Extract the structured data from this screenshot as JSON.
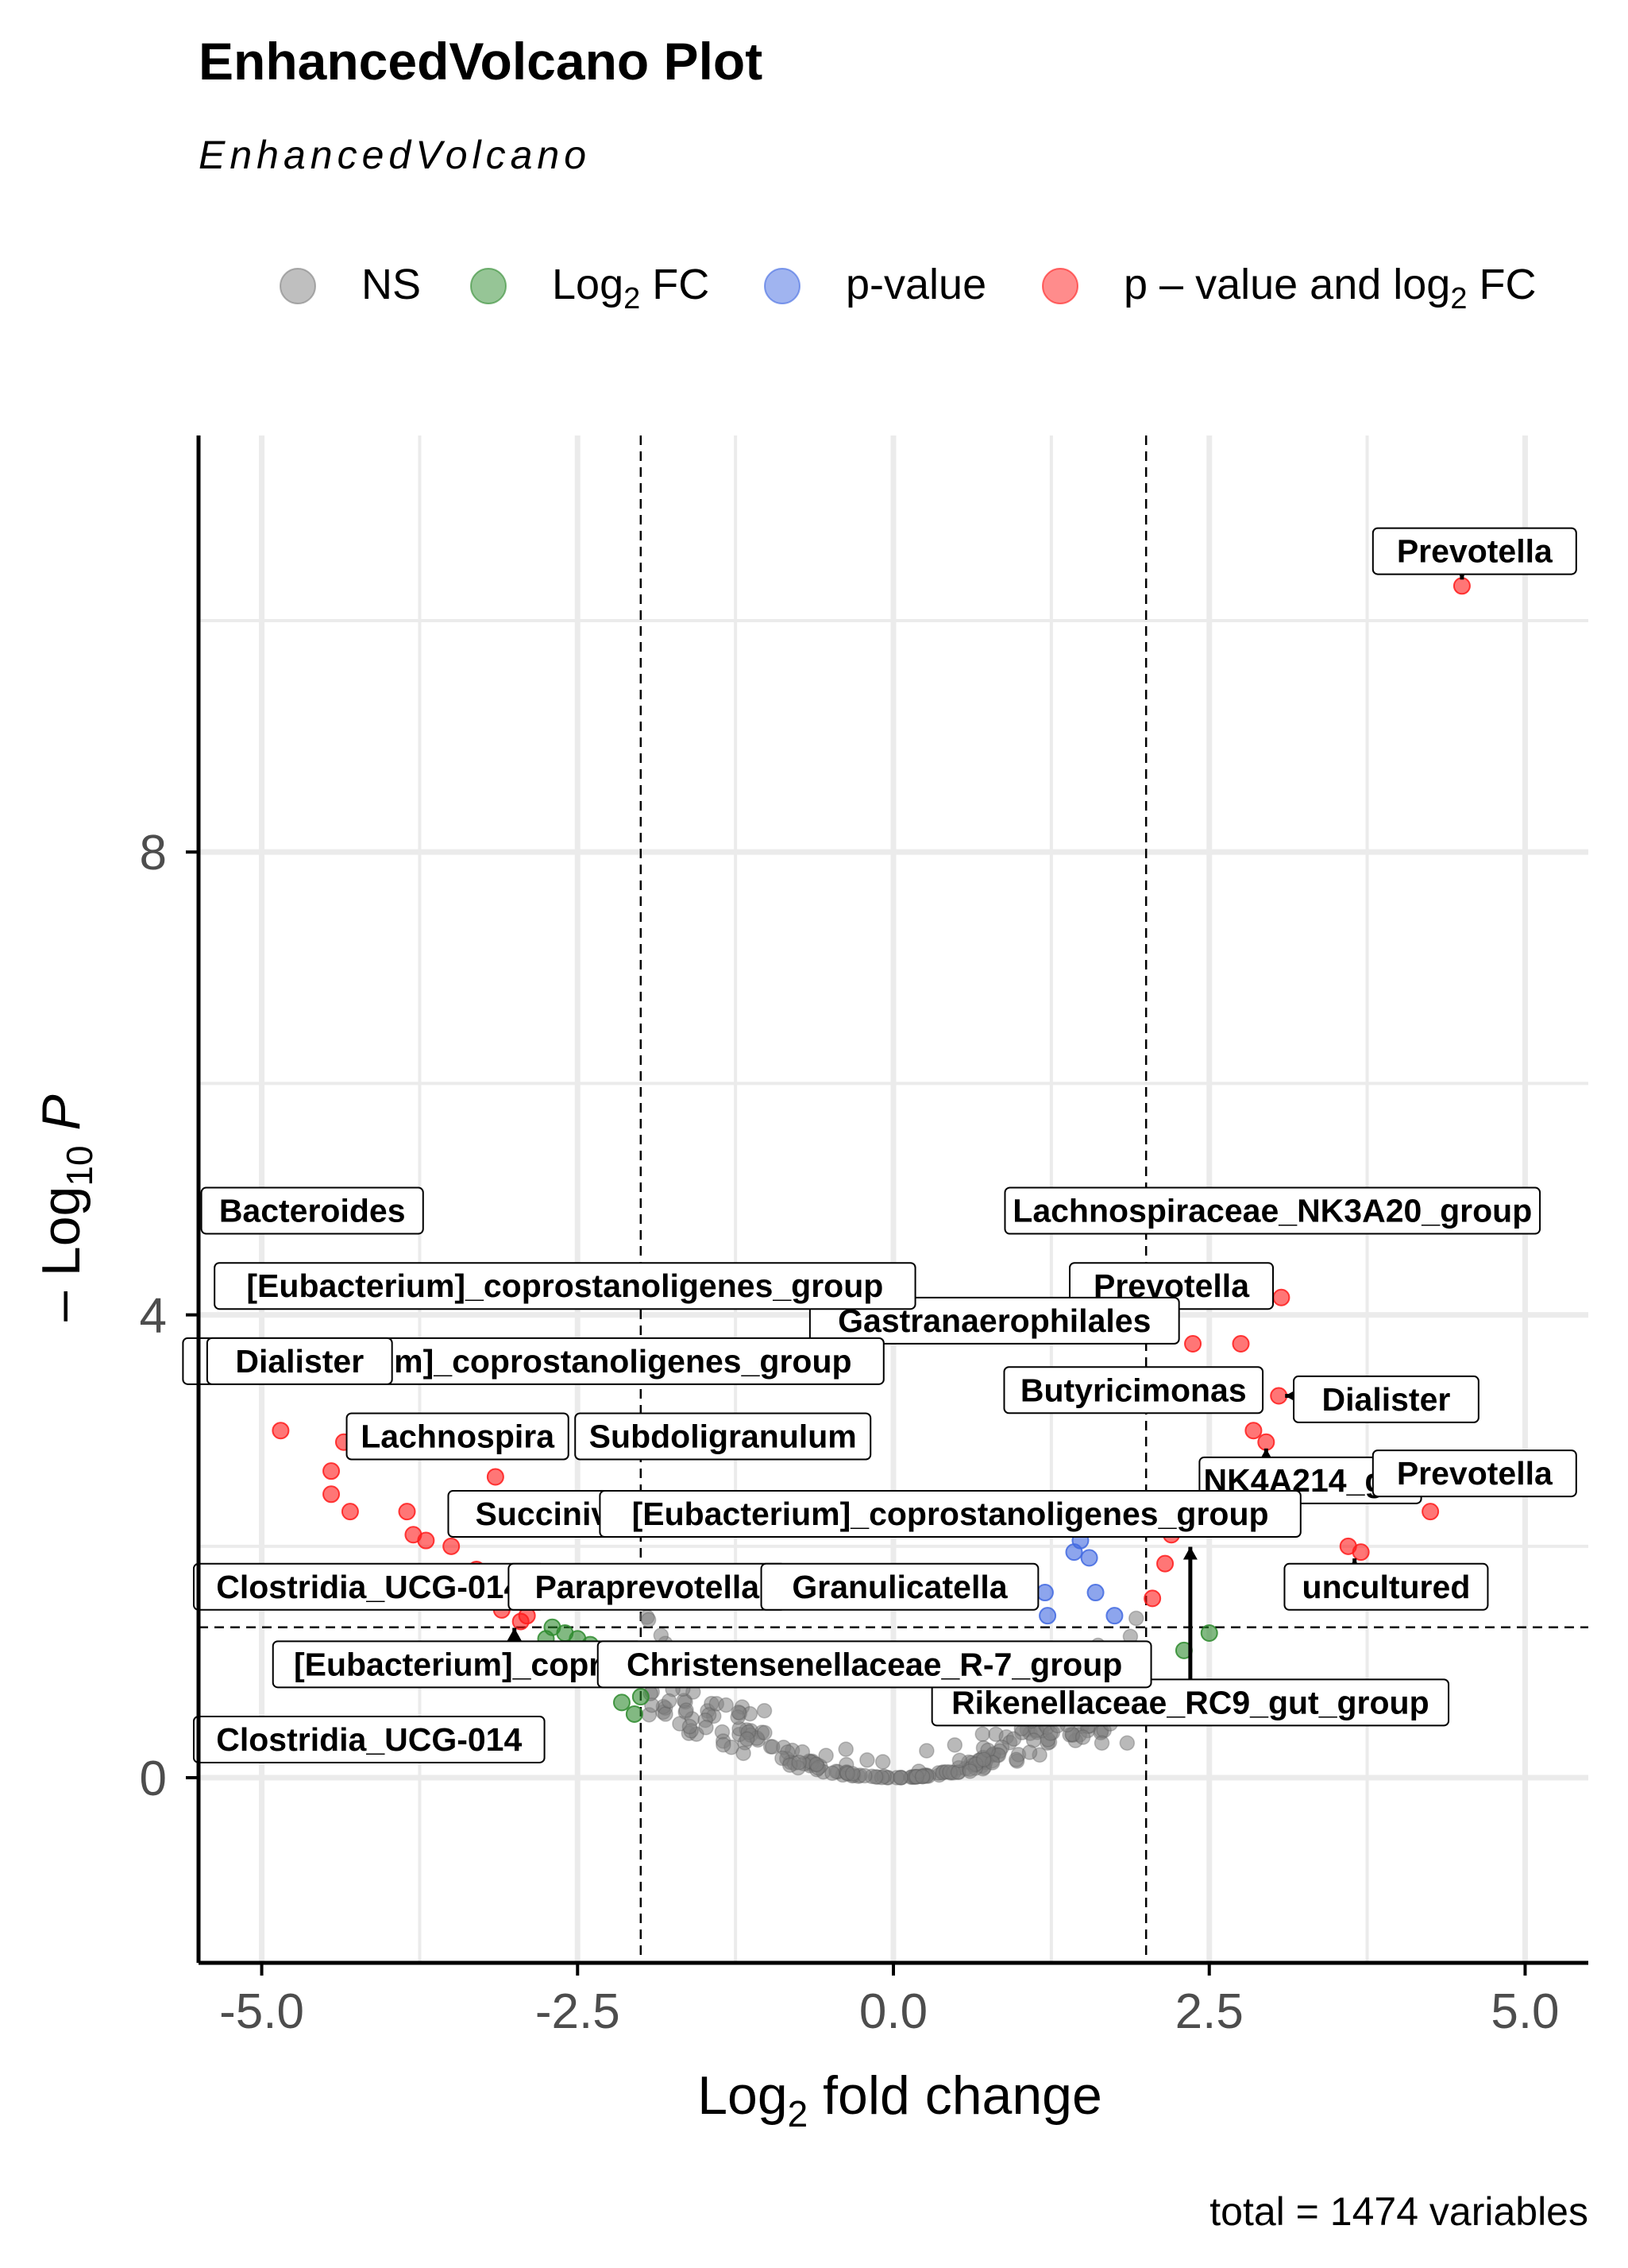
{
  "chart_data": {
    "type": "scatter",
    "title": "EnhancedVolcano Plot",
    "subtitle": "EnhancedVolcano",
    "caption": "total = 1474 variables",
    "xlabel": {
      "main": "Log",
      "sub": "2",
      "rest": " fold change"
    },
    "ylabel": {
      "prefix": "– Log",
      "sub": "10",
      "italic": "P"
    },
    "xlim": [
      -5.5,
      5.5
    ],
    "ylim": [
      -1.6,
      11.6
    ],
    "xticks": [
      -5,
      -2.5,
      0,
      2.5,
      5
    ],
    "xtick_labels": [
      "-5.0",
      "-2.5",
      "0.0",
      "2.5",
      "5.0"
    ],
    "yticks": [
      0,
      4,
      8
    ],
    "ytick_labels": [
      "0",
      "4",
      "8"
    ],
    "grid": true,
    "fc_cutoff": 2,
    "p_cutoff_neglog10": 1.3,
    "legend": {
      "position": "top",
      "items": [
        {
          "key": "ns",
          "text": "NS",
          "color": "#808080"
        },
        {
          "key": "fc",
          "text": "Log",
          "sub": "2",
          "rest": " FC",
          "color": "#2e8b2e"
        },
        {
          "key": "p",
          "text": "p-value",
          "color": "#4169e1"
        },
        {
          "key": "pfc",
          "text": "p – value and log",
          "sub": "2",
          "rest": " FC",
          "color": "#ff1a1a"
        }
      ]
    },
    "colors": {
      "NS": "#808080",
      "FC": "#2e8b2e",
      "P": "#4169e1",
      "P_FC": "#ff1a1a"
    },
    "series": [
      {
        "name": "p – value and log2 FC",
        "key": "pfc",
        "points": [
          [
            4.5,
            10.3
          ],
          [
            3.07,
            4.15
          ],
          [
            2.75,
            3.75
          ],
          [
            2.37,
            3.75
          ],
          [
            3.05,
            3.3
          ],
          [
            2.85,
            3.0
          ],
          [
            2.95,
            2.9
          ],
          [
            4.25,
            2.3
          ],
          [
            3.6,
            2.0
          ],
          [
            3.7,
            1.95
          ],
          [
            2.2,
            2.1
          ],
          [
            2.15,
            1.85
          ],
          [
            2.05,
            1.55
          ],
          [
            -4.85,
            3.0
          ],
          [
            -4.45,
            2.65
          ],
          [
            -4.45,
            2.45
          ],
          [
            -4.3,
            2.3
          ],
          [
            -4.35,
            2.9
          ],
          [
            -3.85,
            2.3
          ],
          [
            -3.8,
            2.1
          ],
          [
            -3.7,
            2.05
          ],
          [
            -3.5,
            2.0
          ],
          [
            -3.45,
            2.3
          ],
          [
            -3.3,
            1.8
          ],
          [
            -3.2,
            1.6
          ],
          [
            -3.1,
            1.45
          ],
          [
            -2.95,
            1.35
          ],
          [
            -2.9,
            1.4
          ],
          [
            -3.15,
            2.6
          ],
          [
            -2.0,
            2.9
          ],
          [
            -1.75,
            1.65
          ]
        ]
      },
      {
        "name": "p-value",
        "key": "p",
        "points": [
          [
            1.2,
            1.6
          ],
          [
            1.22,
            1.4
          ],
          [
            1.43,
            1.95
          ],
          [
            1.48,
            2.05
          ],
          [
            1.55,
            1.9
          ],
          [
            1.75,
            1.4
          ],
          [
            1.6,
            1.6
          ]
        ]
      },
      {
        "name": "Log2 FC",
        "key": "fc",
        "points": [
          [
            -2.6,
            1.25
          ],
          [
            -2.5,
            1.2
          ],
          [
            -2.4,
            1.15
          ],
          [
            -2.3,
            1.05
          ],
          [
            -2.2,
            0.95
          ],
          [
            -2.1,
            0.85
          ],
          [
            -2.0,
            0.7
          ],
          [
            -2.05,
            0.55
          ],
          [
            -2.15,
            0.65
          ],
          [
            -2.45,
            1.0
          ],
          [
            -2.7,
            1.3
          ],
          [
            -2.75,
            1.2
          ],
          [
            -2.55,
            0.95
          ],
          [
            2.5,
            1.25
          ],
          [
            2.3,
            1.1
          ],
          [
            2.05,
            0.7
          ]
        ]
      }
    ],
    "labels": [
      {
        "text": "Prevotella",
        "x": 4.5,
        "y": 10.3,
        "lx": 4.6,
        "ly": 10.6
      },
      {
        "text": "Lachnospiraceae_NK3A20_group",
        "x": 2.95,
        "y": 4.65,
        "lx": 3.0,
        "ly": 4.9
      },
      {
        "text": "Prevotella",
        "x": 2.55,
        "y": 4.05,
        "lx": 2.2,
        "ly": 4.25
      },
      {
        "text": "Gastranaerophilales",
        "x": 1.75,
        "y": 4.05,
        "lx": 0.8,
        "ly": 3.95
      },
      {
        "text": "Butyricimonas",
        "x": 2.8,
        "y": 3.15,
        "lx": 1.9,
        "ly": 3.35
      },
      {
        "text": "Dialister",
        "x": 3.05,
        "y": 3.3,
        "lx": 3.9,
        "ly": 3.27
      },
      {
        "text": "NK4A214_gro",
        "x": 2.95,
        "y": 2.9,
        "lx": 3.3,
        "ly": 2.57
      },
      {
        "text": "Prevotella",
        "x": 4.3,
        "y": 2.35,
        "lx": 4.6,
        "ly": 2.63
      },
      {
        "text": "uncultured",
        "x": 3.65,
        "y": 1.95,
        "lx": 3.9,
        "ly": 1.65
      },
      {
        "text": "Rikenellaceae_RC9_gut_group",
        "x": 2.35,
        "y": 2.05,
        "lx": 2.35,
        "ly": 0.65
      },
      {
        "text": "Bacteroides",
        "x": -4.45,
        "y": 4.65,
        "lx": -4.6,
        "ly": 4.9
      },
      {
        "text": "[Eubacterium]_coprostanoligenes_group",
        "x": -3.35,
        "y": 4.0,
        "lx": -2.6,
        "ly": 4.25
      },
      {
        "text": "[Eubacterium]_coprostanoligenes_group",
        "x": -3.65,
        "y": 3.45,
        "lx": -2.85,
        "ly": 3.6
      },
      {
        "text": "Dialister",
        "x": -4.8,
        "y": 3.45,
        "lx": -4.7,
        "ly": 3.6
      },
      {
        "text": "Lachnospira",
        "x": -3.15,
        "y": 2.7,
        "lx": -3.45,
        "ly": 2.95
      },
      {
        "text": "Subdoligranulum",
        "x": -2.0,
        "y": 2.95,
        "lx": -1.35,
        "ly": 2.95
      },
      {
        "text": "Succinivibrio",
        "x": -3.2,
        "y": 2.3,
        "lx": -2.5,
        "ly": 2.28
      },
      {
        "text": "[Eubacterium]_coprostanoligenes_group",
        "x": 2.2,
        "y": 2.15,
        "lx": 0.45,
        "ly": 2.28
      },
      {
        "text": "Clostridia_UCG-014",
        "x": -3.9,
        "y": 1.9,
        "lx": -4.15,
        "ly": 1.65
      },
      {
        "text": "Paraprevotella",
        "x": -2.95,
        "y": 1.5,
        "lx": -1.95,
        "ly": 1.65
      },
      {
        "text": "Granulicatella",
        "x": -0.7,
        "y": 1.65,
        "lx": 0.05,
        "ly": 1.65
      },
      {
        "text": "[Eubacterium]_copro",
        "x": -3.0,
        "y": 1.35,
        "lx": -3.45,
        "ly": 0.98
      },
      {
        "text": "Christensenellaceae_R-7_group",
        "x": -2.0,
        "y": 0.9,
        "lx": -0.15,
        "ly": 0.98
      },
      {
        "text": "Clostridia_UCG-014",
        "x": -3.9,
        "y": 0.6,
        "lx": -4.15,
        "ly": 0.33
      }
    ]
  }
}
